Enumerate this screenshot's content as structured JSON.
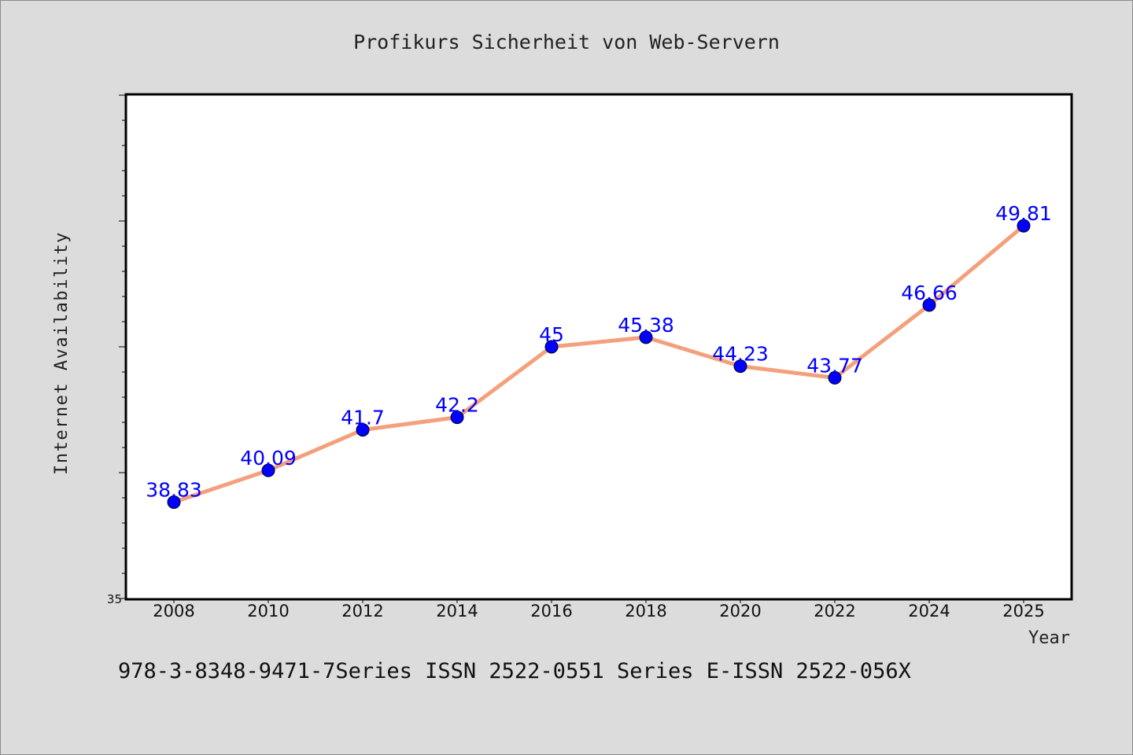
{
  "chart_data": {
    "type": "line",
    "title": "Profikurs Sicherheit von Web-Servern",
    "xlabel": "Year",
    "ylabel": "Internet Availability",
    "x": [
      "2008",
      "2010",
      "2012",
      "2014",
      "2016",
      "2018",
      "2020",
      "2022",
      "2024",
      "2025"
    ],
    "series": [
      {
        "values": [
          38.83,
          40.09,
          41.7,
          42.2,
          45,
          45.38,
          44.23,
          43.77,
          46.66,
          49.81
        ],
        "labels": [
          "38.83",
          "40.09",
          "41.7",
          "42.2",
          "45",
          "45.38",
          "44.23",
          "43.77",
          "46.66",
          "49.81"
        ],
        "line_color": "#f4a07c",
        "marker_color": "#0000ff"
      }
    ],
    "ylim": [
      35,
      55
    ],
    "y_tick_labels": [
      "35"
    ],
    "grid": false,
    "legend": "none",
    "background": "#ffffff",
    "footer": "978-3-8348-9471-7Series ISSN 2522-0551 Series E-ISSN 2522-056X"
  }
}
